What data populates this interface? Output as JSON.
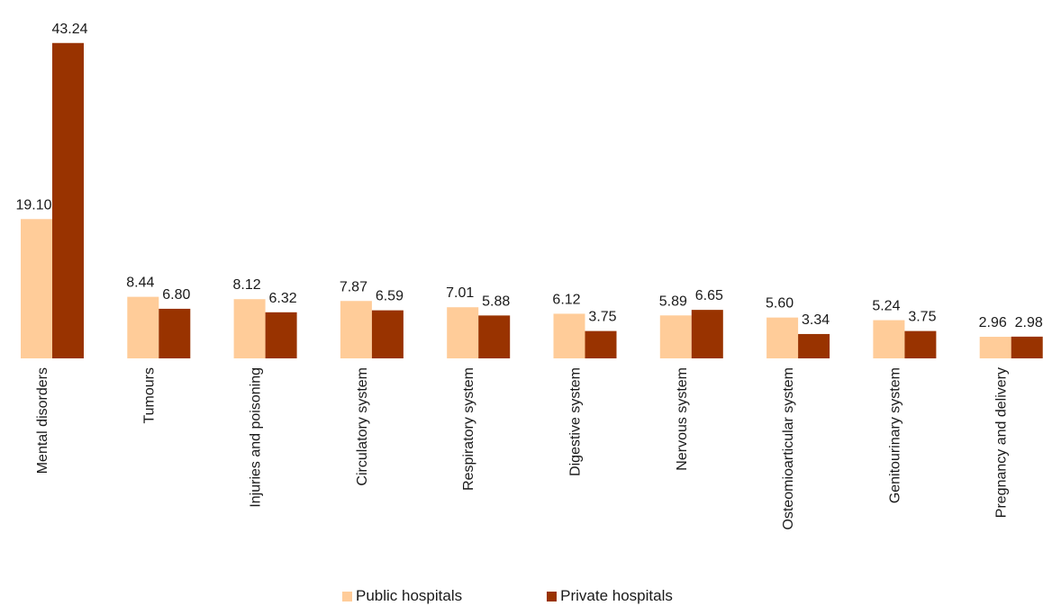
{
  "chart_data": {
    "type": "bar",
    "title": "",
    "xlabel": "",
    "ylabel": "",
    "ylim": [
      0,
      45
    ],
    "grid": false,
    "legend_position": "bottom",
    "categories": [
      "Mental disorders",
      "Tumours",
      "Injuries and poisoning",
      "Circulatory system",
      "Respiratory system",
      "Digestive system",
      "Nervous system",
      "Osteomioarticular system",
      "Genitourinary system",
      "Pregnancy and delivery"
    ],
    "series": [
      {
        "name": "Public hospitals",
        "color": "#FFCC99",
        "values": [
          19.1,
          8.44,
          8.12,
          7.87,
          7.01,
          6.12,
          5.89,
          5.6,
          5.24,
          2.96
        ],
        "labels": [
          "19.10",
          "8.44",
          "8.12",
          "7.87",
          "7.01",
          "6.12",
          "5.89",
          "5.60",
          "5.24",
          "2.96"
        ]
      },
      {
        "name": "Private hospitals",
        "color": "#993300",
        "values": [
          43.24,
          6.8,
          6.32,
          6.59,
          5.88,
          3.75,
          6.65,
          3.34,
          3.75,
          2.98
        ],
        "labels": [
          "43.24",
          "6.80",
          "6.32",
          "6.59",
          "5.88",
          "3.75",
          "6.65",
          "3.34",
          "3.75",
          "2.98"
        ]
      }
    ]
  }
}
